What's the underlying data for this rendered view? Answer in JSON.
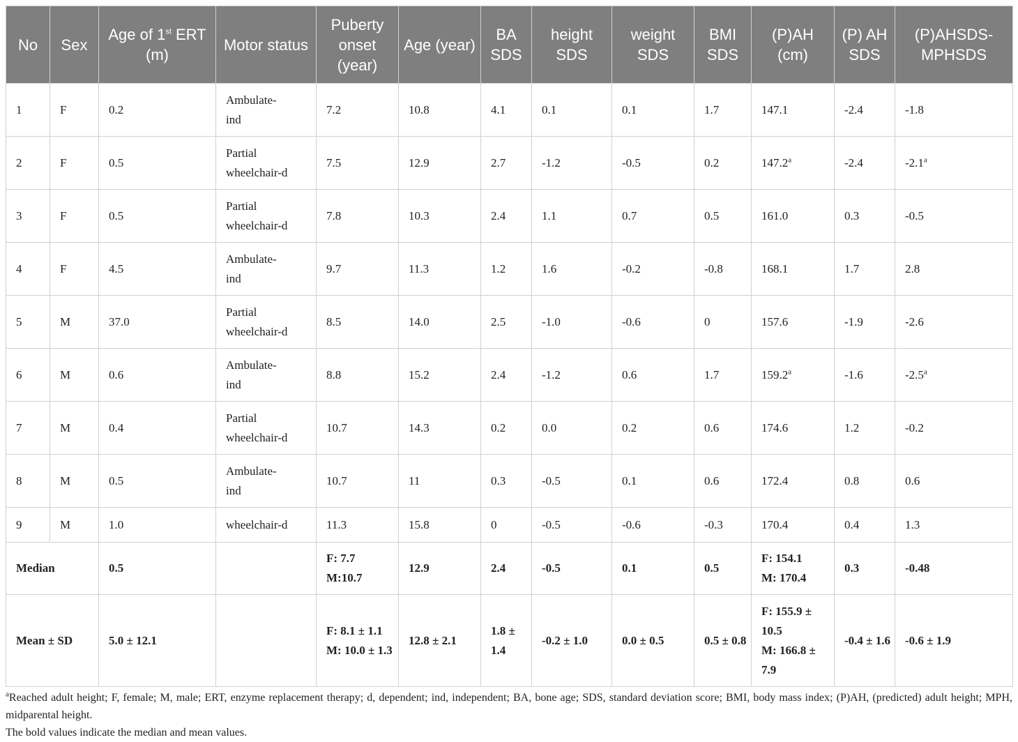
{
  "table": {
    "header": [
      "No",
      "Sex",
      {
        "text": "Age of 1",
        "sup": "st",
        "rest": " ERT (m)"
      },
      "Motor status",
      "Puberty onset (year)",
      "Age (year)",
      "BA SDS",
      "height SDS",
      "weight SDS",
      "BMI SDS",
      "(P)AH (cm)",
      "(P) AH SDS",
      "(P)AHSDS-MPHSDS"
    ],
    "rows": [
      [
        "1",
        "F",
        "0.2",
        "Ambulate-ind",
        "7.2",
        "10.8",
        "4.1",
        "0.1",
        "0.1",
        "1.7",
        "147.1",
        "-2.4",
        "-1.8"
      ],
      [
        "2",
        "F",
        "0.5",
        "Partial wheelchair-d",
        "7.5",
        "12.9",
        "2.7",
        "-1.2",
        "-0.5",
        "0.2",
        {
          "text": "147.2",
          "sup": "a"
        },
        "-2.4",
        {
          "text": "-2.1",
          "sup": "a"
        }
      ],
      [
        "3",
        "F",
        "0.5",
        "Partial wheelchair-d",
        "7.8",
        "10.3",
        "2.4",
        "1.1",
        "0.7",
        "0.5",
        "161.0",
        "0.3",
        "-0.5"
      ],
      [
        "4",
        "F",
        "4.5",
        "Ambulate-ind",
        "9.7",
        "11.3",
        "1.2",
        "1.6",
        "-0.2",
        "-0.8",
        "168.1",
        "1.7",
        "2.8"
      ],
      [
        "5",
        "M",
        "37.0",
        "Partial wheelchair-d",
        "8.5",
        "14.0",
        "2.5",
        "-1.0",
        "-0.6",
        "0",
        "157.6",
        "-1.9",
        "-2.6"
      ],
      [
        "6",
        "M",
        "0.6",
        "Ambulate-ind",
        "8.8",
        "15.2",
        "2.4",
        "-1.2",
        "0.6",
        "1.7",
        {
          "text": "159.2",
          "sup": "a"
        },
        "-1.6",
        {
          "text": "-2.5",
          "sup": "a"
        }
      ],
      [
        "7",
        "M",
        "0.4",
        "Partial wheelchair-d",
        "10.7",
        "14.3",
        "0.2",
        "0.0",
        "0.2",
        "0.6",
        "174.6",
        "1.2",
        "-0.2"
      ],
      [
        "8",
        "M",
        "0.5",
        "Ambulate-ind",
        "10.7",
        "11",
        "0.3",
        "-0.5",
        "0.1",
        "0.6",
        "172.4",
        "0.8",
        "0.6"
      ],
      [
        "9",
        "M",
        "1.0",
        "wheelchair-d",
        "11.3",
        "15.8",
        "0",
        "-0.5",
        "-0.6",
        "-0.3",
        "170.4",
        "0.4",
        "1.3"
      ]
    ],
    "summary": [
      {
        "label": "Median",
        "cells": [
          "0.5",
          null,
          [
            "F: 7.7",
            "M:10.7"
          ],
          "12.9",
          "2.4",
          "-0.5",
          "0.1",
          "0.5",
          [
            "F: 154.1",
            "M: 170.4"
          ],
          "0.3",
          "-0.48"
        ]
      },
      {
        "label": "Mean ± SD",
        "cells": [
          "5.0 ± 12.1",
          null,
          [
            "F: 8.1 ± 1.1",
            "M: 10.0 ± 1.3"
          ],
          "12.8 ± 2.1",
          "1.8 ± 1.4",
          "-0.2 ± 1.0",
          "0.0 ± 0.5",
          "0.5 ± 0.8",
          [
            "F: 155.9 ± 10.5",
            "M: 166.8 ± 7.9"
          ],
          "-0.4 ± 1.6",
          "-0.6 ± 1.9"
        ]
      }
    ]
  },
  "footnotes": [
    {
      "sup": "a",
      "text": "Reached adult height; F, female; M, male; ERT, enzyme replacement therapy; d, dependent; ind, independent; BA, bone age; SDS, standard deviation score; BMI, body mass index; (P)AH, (predicted) adult height; MPH, midparental height."
    },
    "The bold values indicate the median and mean values."
  ]
}
